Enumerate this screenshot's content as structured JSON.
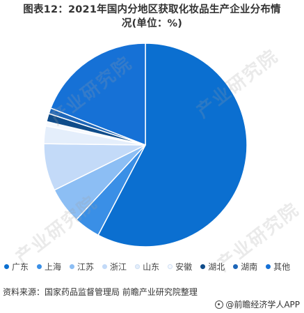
{
  "title": {
    "line1": "图表12：2021年国内分地区获取化妆品生产企业分布情",
    "line2": "况(单位：%)"
  },
  "watermarks": [
    "产业研究院",
    "产业研究院",
    "产业研究院",
    "产业研究院"
  ],
  "chart_data": {
    "type": "pie",
    "title": "图表12：2021年国内分地区获取化妆品生产企业分布情况(单位：%)",
    "legend_position": "bottom",
    "start_angle": "12 o'clock, clockwise",
    "slices": [
      {
        "label": "广东",
        "value": 57.7,
        "color": "#0b6fd0"
      },
      {
        "label": "上海",
        "value": 4.2,
        "color": "#3a8fe6"
      },
      {
        "label": "江苏",
        "value": 5.8,
        "color": "#8cbef4"
      },
      {
        "label": "浙江",
        "value": 7.5,
        "color": "#c3daf8"
      },
      {
        "label": "山东",
        "value": 2.8,
        "color": "#e4eefb"
      },
      {
        "label": "安徽",
        "value": 0.7,
        "color": "#f6f9fe"
      },
      {
        "label": "湖北",
        "value": 1.3,
        "color": "#0f4c8a"
      },
      {
        "label": "湖南",
        "value": 0.9,
        "color": "#1d66b8"
      },
      {
        "label": "其他",
        "value": 19.1,
        "color": "#1671d6"
      }
    ]
  },
  "source_text": "资料来源：国家药品监督管理局 前瞻产业研究院整理",
  "brand_text": "@前瞻经济学人APP"
}
